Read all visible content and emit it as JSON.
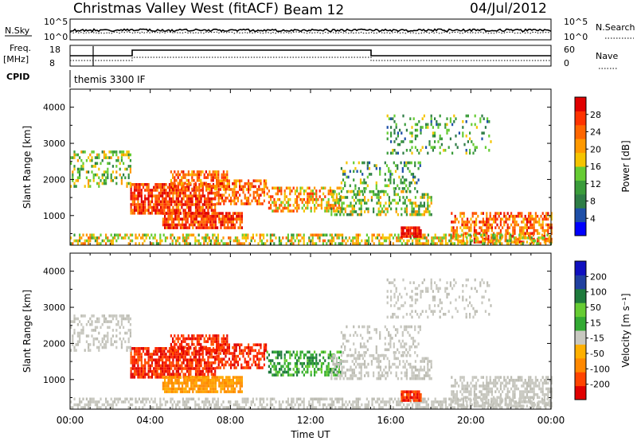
{
  "header": {
    "title": "Christmas Valley West (fitACF)",
    "beam": "Beam 12",
    "date": "04/Jul/2012"
  },
  "top_strips": {
    "nsky_label": "N.Sky",
    "nsky_ticks": [
      "10^5",
      "10^0"
    ],
    "nsearch_label": "N.Search",
    "nsearch_ticks": [
      "10^5",
      "10^0"
    ],
    "freq_label": "Freq.",
    "freq_unit": "[MHz]",
    "freq_ticks": [
      "18",
      "8"
    ],
    "nave_label": "Nave",
    "nave_ticks": [
      "60",
      "0"
    ],
    "cpid_label": "CPID",
    "cpid_text": "themis 3300 IF"
  },
  "chart_data": [
    {
      "type": "heatmap",
      "name": "power-panel",
      "ylabel": "Slant Range [km]",
      "xlabel": "Time UT",
      "x_ticks": [
        "00:00",
        "04:00",
        "08:00",
        "12:00",
        "16:00",
        "20:00",
        "00:00"
      ],
      "x_range_hours": [
        0,
        24
      ],
      "y_ticks": [
        1000,
        2000,
        3000,
        4000
      ],
      "y_range_km": [
        180,
        4500
      ],
      "colorbar": {
        "label": "Power [dB]",
        "ticks": [
          "28",
          "24",
          "20",
          "16",
          "12",
          "8",
          "4"
        ],
        "colors": [
          "#0000ff",
          "#1e4fa8",
          "#2e7d46",
          "#3a9c3a",
          "#66cc33",
          "#f5c400",
          "#ff9900",
          "#ff6600",
          "#ff3300",
          "#e00000"
        ]
      }
    },
    {
      "type": "heatmap",
      "name": "velocity-panel",
      "ylabel": "Slant Range [km]",
      "xlabel": "Time UT",
      "x_ticks": [
        "00:00",
        "04:00",
        "08:00",
        "12:00",
        "16:00",
        "20:00",
        "00:00"
      ],
      "x_range_hours": [
        0,
        24
      ],
      "y_ticks": [
        1000,
        2000,
        3000,
        4000
      ],
      "y_range_km": [
        180,
        4500
      ],
      "colorbar": {
        "label": "Velocity [m s⁻¹]",
        "ticks": [
          "200",
          "100",
          "50",
          "15",
          "-15",
          "-50",
          "-100",
          "-200"
        ],
        "colors": [
          "#e00000",
          "#ff4400",
          "#ff8800",
          "#ffb000",
          "#c8c8c0",
          "#33aa33",
          "#66cc33",
          "#1e7a3c",
          "#2040a0",
          "#1010c0"
        ]
      }
    }
  ],
  "colors": {
    "ground_scatter": "#c8c8c0",
    "axis": "#000000"
  }
}
